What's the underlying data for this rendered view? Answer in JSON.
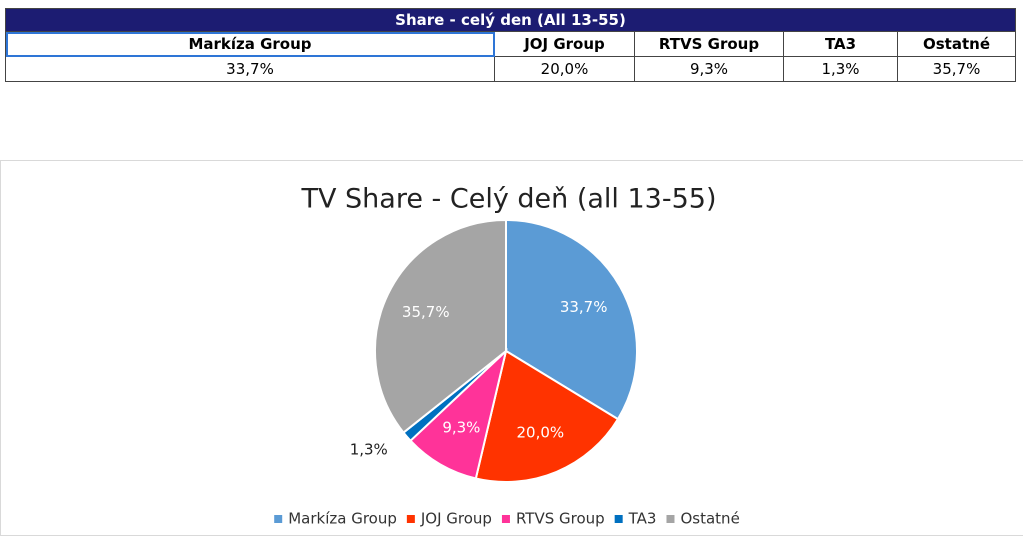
{
  "table": {
    "title": "Share - celý den (All 13-55)",
    "headers": [
      "Markíza Group",
      "JOJ Group",
      "RTVS Group",
      "TA3",
      "Ostatné"
    ],
    "rows": [
      [
        "33,7%",
        "20,0%",
        "9,3%",
        "1,3%",
        "35,7%"
      ]
    ]
  },
  "chart_data": {
    "type": "pie",
    "title": "TV Share - Celý deň (all 13-55)",
    "categories": [
      "Markíza Group",
      "JOJ Group",
      "RTVS Group",
      "TA3",
      "Ostatné"
    ],
    "values": [
      33.7,
      20.0,
      9.3,
      1.3,
      35.7
    ],
    "value_labels": [
      "33,7%",
      "20,0%",
      "9,3%",
      "1,3%",
      "35,7%"
    ],
    "colors": [
      "#5b9bd5",
      "#ff3300",
      "#ff3399",
      "#0070c0",
      "#a5a5a5"
    ],
    "legend": "bottom"
  }
}
